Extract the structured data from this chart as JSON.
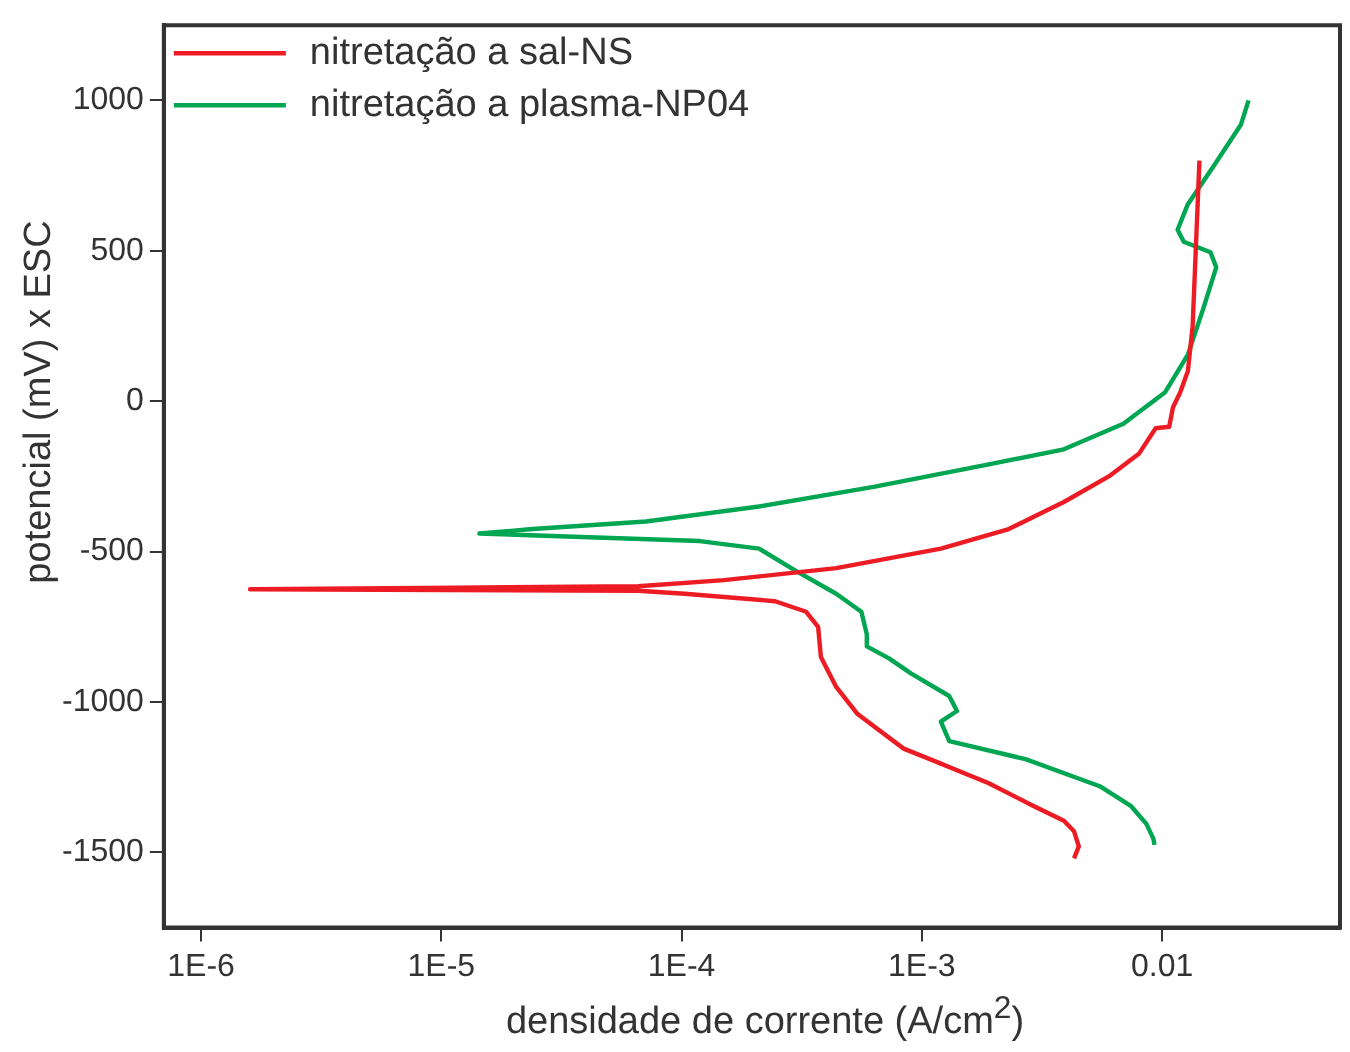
{
  "chart_data": {
    "type": "line",
    "xlabel": "densidade de corrente (A/cm$^{2}$)",
    "ylabel": "potencial (mV) x ESC",
    "log": "x",
    "grid": false,
    "legend": "top left",
    "xlim": [
      7e-07,
      0.055
    ],
    "xticks": [
      {
        "value": 1e-06,
        "label": "1E-6"
      },
      {
        "value": 1e-05,
        "label": "1E-5"
      },
      {
        "value": 0.0001,
        "label": "1E-4"
      },
      {
        "value": 0.001,
        "label": "1E-3"
      },
      0.01
    ],
    "ylim": [
      -1750,
      1250
    ],
    "yticks": [
      -1500,
      -1000,
      -500,
      0,
      500,
      1000
    ],
    "series": [
      {
        "name": "nitretação a sal-NS",
        "color": "#ed1c24",
        "x": [
          0.0143,
          0.0134,
          0.0128,
          0.0119,
          0.0111,
          0.0107,
          0.0094,
          0.008,
          0.006,
          0.0039,
          0.0023,
          0.0012,
          0.00044,
          0.00015,
          6.6e-05,
          1.16e-05,
          1.6e-06,
          6.6e-05,
          0.000103,
          0.000245,
          0.00033,
          0.00037,
          0.00038,
          0.00044,
          0.00054,
          0.00084,
          0.0012,
          0.0019,
          0.0029,
          0.0039,
          0.0043,
          0.0045,
          0.0043
        ],
        "values": [
          800,
          250,
          100,
          30,
          -20,
          -85,
          -90,
          -175,
          -250,
          -335,
          -425,
          -490,
          -555,
          -595,
          -615,
          -620,
          -625,
          -630,
          -640,
          -665,
          -700,
          -750,
          -850,
          -950,
          -1040,
          -1155,
          -1205,
          -1270,
          -1345,
          -1395,
          -1430,
          -1480,
          -1520
        ]
      },
      {
        "name": "nitretação a plasma-NP04",
        "color": "#00a651",
        "x": [
          0.0229,
          0.0213,
          0.0165,
          0.0128,
          0.0116,
          0.0123,
          0.0159,
          0.0168,
          0.0148,
          0.0128,
          0.0103,
          0.0069,
          0.0039,
          0.0019,
          0.00063,
          0.00021,
          7.1e-05,
          2.4e-05,
          1.44e-05,
          0.000119,
          0.00021,
          0.0003,
          0.00044,
          0.00056,
          0.00059,
          0.00059,
          0.00073,
          0.0009,
          0.0013,
          0.0014,
          0.0012,
          0.0013,
          0.0027,
          0.0055,
          0.0074,
          0.0086,
          0.0092,
          0.0093
        ],
        "values": [
          1000,
          920,
          785,
          655,
          570,
          530,
          495,
          445,
          305,
          155,
          30,
          -75,
          -160,
          -210,
          -285,
          -350,
          -400,
          -425,
          -440,
          -465,
          -490,
          -565,
          -640,
          -700,
          -775,
          -815,
          -855,
          -905,
          -980,
          -1030,
          -1065,
          -1130,
          -1190,
          -1280,
          -1345,
          -1405,
          -1455,
          -1475
        ]
      }
    ]
  }
}
